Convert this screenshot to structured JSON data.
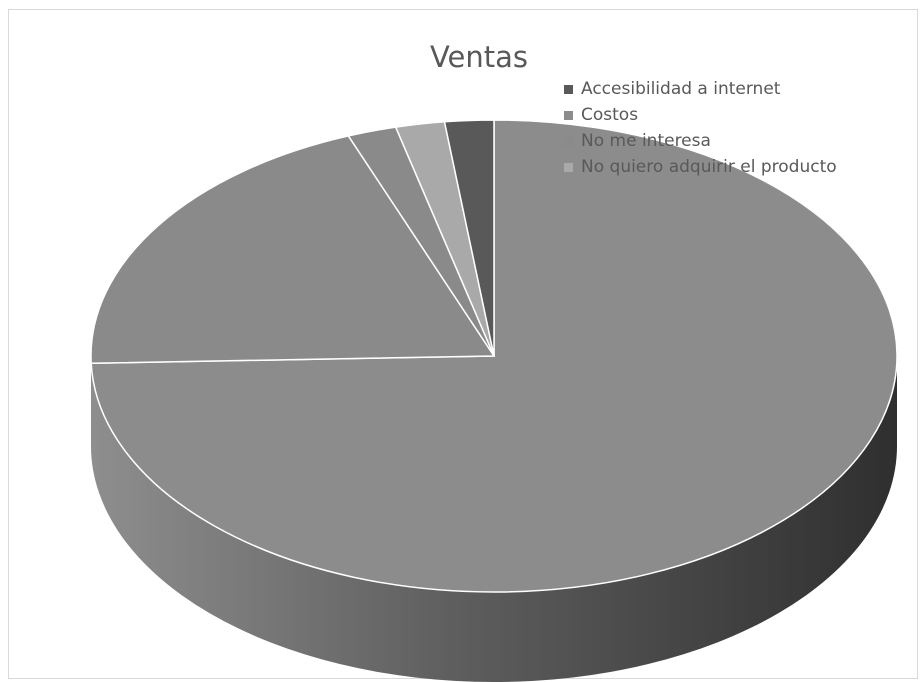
{
  "chart_data": {
    "type": "pie",
    "title": "Ventas",
    "legend_position": "top-right",
    "three_d": true,
    "categories": [
      "Accesibilidad a internet",
      "Costos",
      "No me interesa",
      "No quiero adquirir el producto"
    ],
    "values": [
      2,
      76,
      20,
      2
    ],
    "colors": [
      "#595959",
      "#8c8c8c",
      "#8a8a8a",
      "#a9a9a9"
    ],
    "sizes_note_small_wedge": 2
  }
}
